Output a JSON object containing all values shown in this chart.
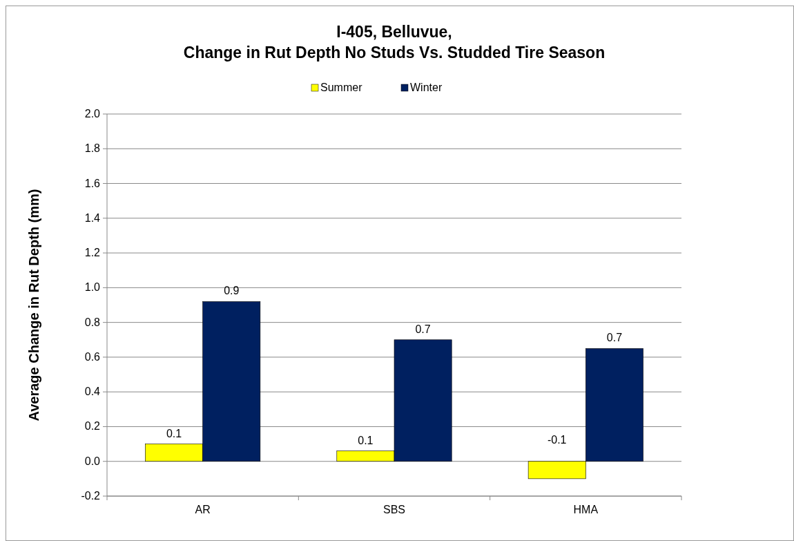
{
  "chart_data": {
    "type": "bar",
    "title": "I-405, Belluvue,\nChange in Rut Depth No Studs Vs. Studded Tire Season",
    "ylabel": "Average Change in Rut Depth (mm)",
    "categories": [
      "AR",
      "SBS",
      "HMA"
    ],
    "series": [
      {
        "name": "Summer",
        "color": "#ffff00",
        "values": [
          0.1,
          0.06,
          -0.1
        ],
        "value_labels": [
          "0.1",
          "0.1",
          "-0.1"
        ]
      },
      {
        "name": "Winter",
        "color": "#002060",
        "values": [
          0.92,
          0.7,
          0.65
        ],
        "value_labels": [
          "0.9",
          "0.7",
          "0.7"
        ]
      }
    ],
    "ylim": [
      -0.2,
      2.0
    ],
    "yticks": [
      {
        "value": -0.2,
        "label": "-0.2"
      },
      {
        "value": 0,
        "label": "0.0"
      },
      {
        "value": 0.2,
        "label": "0.2"
      },
      {
        "value": 0.4,
        "label": "0.4"
      },
      {
        "value": 0.6,
        "label": "0.6"
      },
      {
        "value": 0.8,
        "label": "0.8"
      },
      {
        "value": 1,
        "label": "1.0"
      },
      {
        "value": 1.2,
        "label": "1.2"
      },
      {
        "value": 1.4,
        "label": "1.4"
      },
      {
        "value": 1.6,
        "label": "1.6"
      },
      {
        "value": 1.8,
        "label": "1.8"
      },
      {
        "value": 2,
        "label": "2.0"
      }
    ],
    "grid": "y",
    "legend": "top"
  }
}
